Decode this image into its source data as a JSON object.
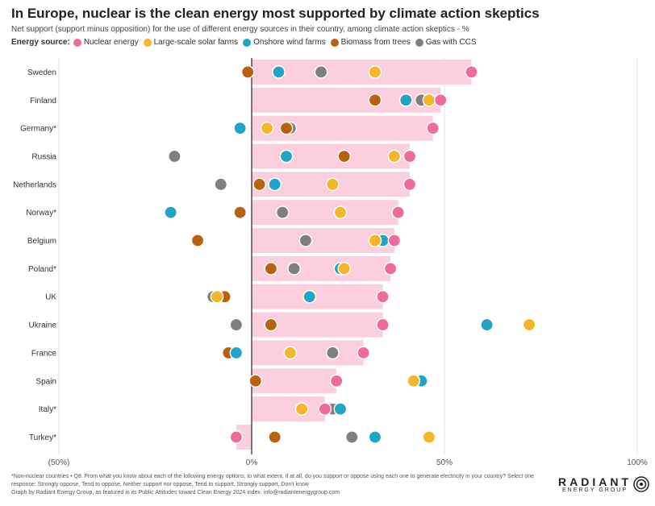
{
  "title": "In Europe, nuclear is the clean energy most supported by climate action skeptics",
  "subtitle": "Net support (support minus opposition) for the use of different energy sources in their country, among climate action skeptics - %",
  "legend_label": "Energy source:",
  "footnote": {
    "line1": "*Non-nuclear countries • Q8. From what you know about each of the following energy options, to what extent, if at all, do you support or oppose using each one to generate electricity in your country? Select one",
    "line2": "response: Strongly oppose, Tend to oppose, Neither support nor oppose, Tend to support, Strongly support, Don't know",
    "line3": "Graph by Radiant Energy Group, as featured in its Public Attitudes toward Clean Energy 2024 index. info@radiantenergygroup.com"
  },
  "brand": {
    "name": "RADIANT",
    "sub": "ENERGY GROUP"
  },
  "chart_data": {
    "type": "scatter",
    "title": "In Europe, nuclear is the clean energy most supported by climate action skeptics",
    "xlabel": "",
    "ylabel": "",
    "xlim": [
      -50,
      100
    ],
    "xticks": [
      -50,
      0,
      50,
      100
    ],
    "xtick_labels": [
      "(50%)",
      "0%",
      "50%",
      "100%"
    ],
    "series": [
      {
        "name": "Nuclear energy",
        "color": "#f06b9d"
      },
      {
        "name": "Large-scale solar farms",
        "color": "#f4b62a"
      },
      {
        "name": "Onshore wind farms",
        "color": "#22a4c6"
      },
      {
        "name": "Biomass from trees",
        "color": "#b8620f"
      },
      {
        "name": "Gas with CCS",
        "color": "#7f7f7f"
      }
    ],
    "bar_color": "#fbcfdd",
    "bar_series": "Nuclear energy",
    "categories": [
      "Sweden",
      "Finland",
      "Germany*",
      "Russia",
      "Netherlands",
      "Norway*",
      "Belgium",
      "Poland*",
      "UK",
      "Ukraine",
      "France",
      "Spain",
      "Italy*",
      "Turkey*"
    ],
    "rows": [
      {
        "country": "Sweden",
        "values": [
          57,
          32,
          7,
          -1,
          18
        ]
      },
      {
        "country": "Finland",
        "values": [
          49,
          46,
          40,
          32,
          44
        ]
      },
      {
        "country": "Germany*",
        "values": [
          47,
          4,
          -3,
          9,
          10
        ]
      },
      {
        "country": "Russia",
        "values": [
          41,
          37,
          9,
          24,
          -20
        ]
      },
      {
        "country": "Netherlands",
        "values": [
          41,
          21,
          6,
          2,
          -8
        ]
      },
      {
        "country": "Norway*",
        "values": [
          38,
          23,
          -21,
          -3,
          8
        ]
      },
      {
        "country": "Belgium",
        "values": [
          37,
          32,
          34,
          -14,
          14
        ]
      },
      {
        "country": "Poland*",
        "values": [
          36,
          24,
          23,
          5,
          11
        ]
      },
      {
        "country": "UK",
        "values": [
          34,
          -9,
          15,
          -7,
          -10
        ]
      },
      {
        "country": "Ukraine",
        "values": [
          34,
          72,
          61,
          5,
          -4
        ]
      },
      {
        "country": "France",
        "values": [
          29,
          10,
          -4,
          -6,
          21
        ]
      },
      {
        "country": "Spain",
        "values": [
          22,
          42,
          44,
          1,
          22
        ]
      },
      {
        "country": "Italy*",
        "values": [
          19,
          13,
          23,
          19,
          21
        ]
      },
      {
        "country": "Turkey*",
        "values": [
          -4,
          46,
          32,
          6,
          26
        ]
      }
    ]
  }
}
